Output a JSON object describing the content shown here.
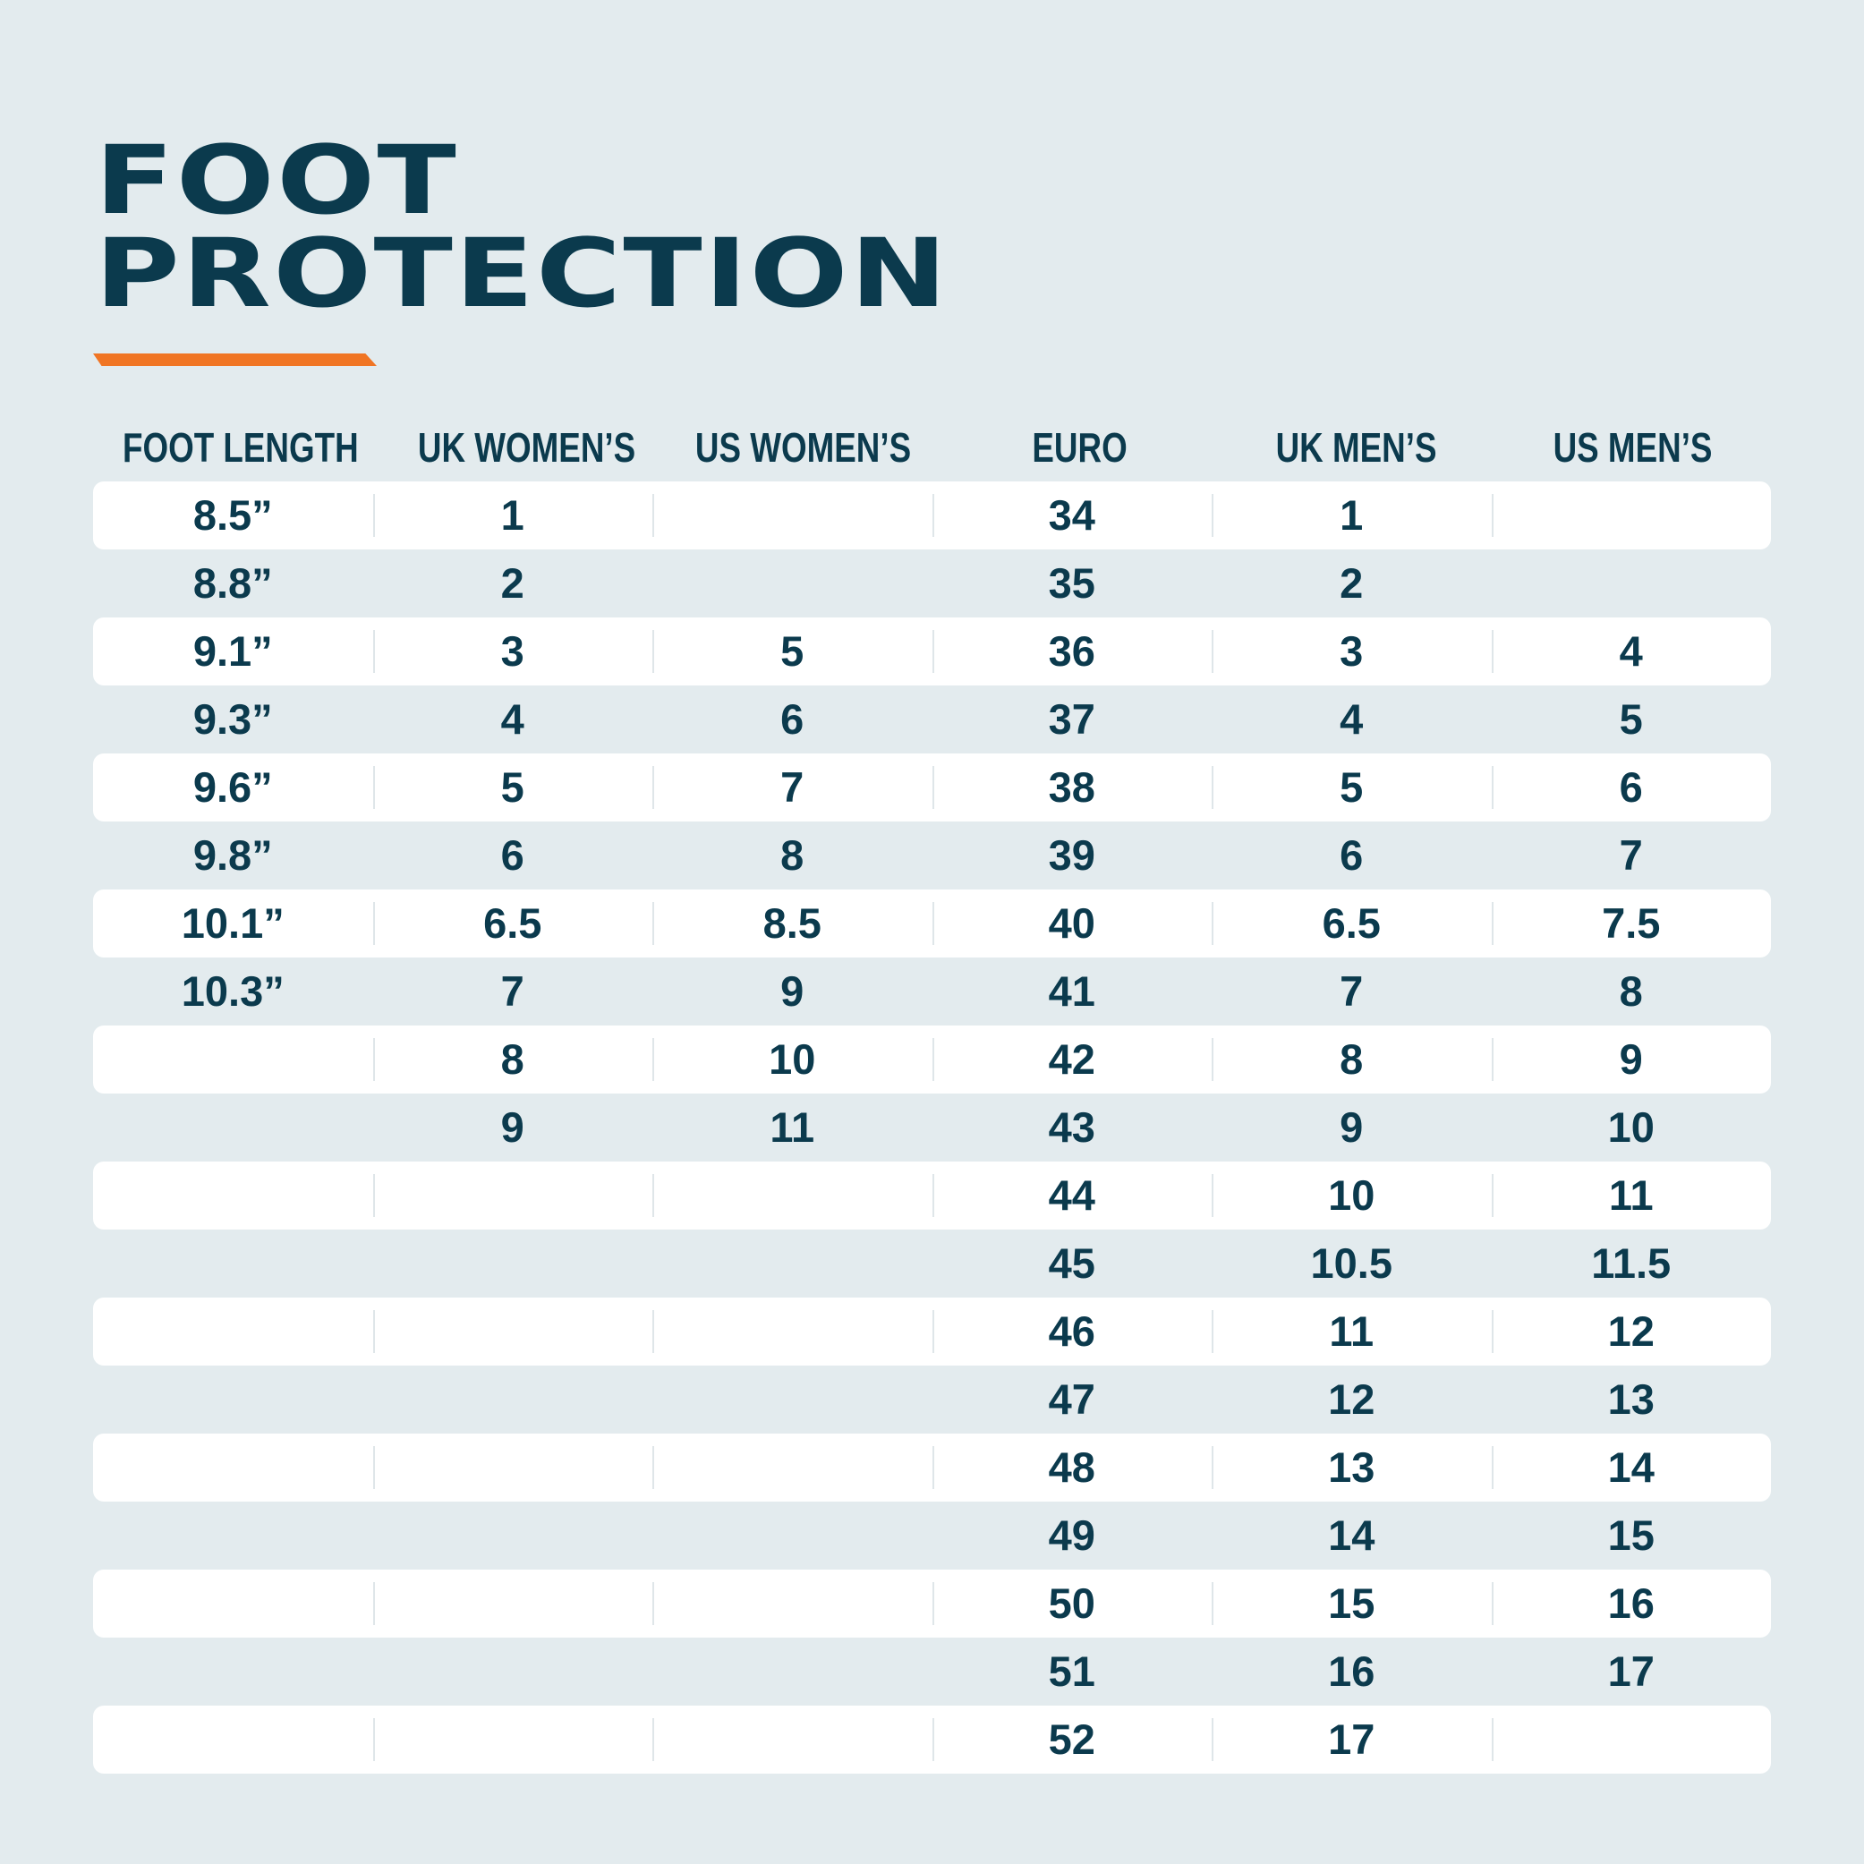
{
  "title": {
    "line1": "FOOT",
    "line2": "PROTECTION"
  },
  "colors": {
    "background": "#e3ebee",
    "text": "#0b3a4d",
    "accent": "#f07524",
    "row": "#ffffff"
  },
  "columns": [
    "FOOT LENGTH",
    "UK WOMEN’S",
    "US WOMEN’S",
    "EURO",
    "UK MEN’S",
    "US MEN’S"
  ],
  "rows": [
    [
      "8.5”",
      "1",
      "",
      "34",
      "1",
      ""
    ],
    [
      "8.8”",
      "2",
      "",
      "35",
      "2",
      ""
    ],
    [
      "9.1”",
      "3",
      "5",
      "36",
      "3",
      "4"
    ],
    [
      "9.3”",
      "4",
      "6",
      "37",
      "4",
      "5"
    ],
    [
      "9.6”",
      "5",
      "7",
      "38",
      "5",
      "6"
    ],
    [
      "9.8”",
      "6",
      "8",
      "39",
      "6",
      "7"
    ],
    [
      "10.1”",
      "6.5",
      "8.5",
      "40",
      "6.5",
      "7.5"
    ],
    [
      "10.3”",
      "7",
      "9",
      "41",
      "7",
      "8"
    ],
    [
      "",
      "8",
      "10",
      "42",
      "8",
      "9"
    ],
    [
      "",
      "9",
      "11",
      "43",
      "9",
      "10"
    ],
    [
      "",
      "",
      "",
      "44",
      "10",
      "11"
    ],
    [
      "",
      "",
      "",
      "45",
      "10.5",
      "11.5"
    ],
    [
      "",
      "",
      "",
      "46",
      "11",
      "12"
    ],
    [
      "",
      "",
      "",
      "47",
      "12",
      "13"
    ],
    [
      "",
      "",
      "",
      "48",
      "13",
      "14"
    ],
    [
      "",
      "",
      "",
      "49",
      "14",
      "15"
    ],
    [
      "",
      "",
      "",
      "50",
      "15",
      "16"
    ],
    [
      "",
      "",
      "",
      "51",
      "16",
      "17"
    ],
    [
      "",
      "",
      "",
      "52",
      "17",
      ""
    ]
  ]
}
